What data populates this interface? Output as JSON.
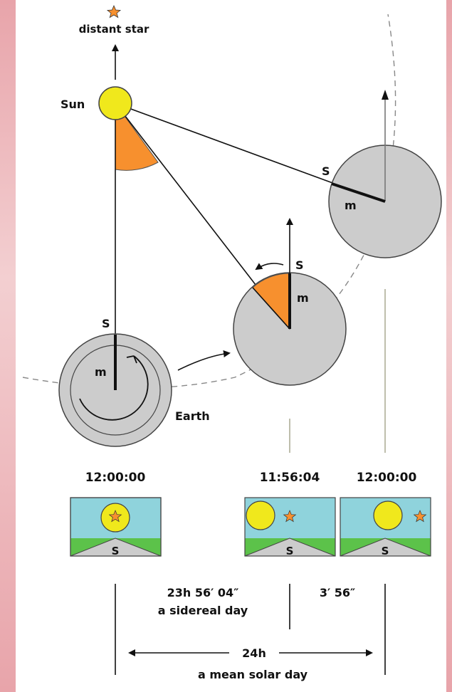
{
  "labels": {
    "star": "distant star",
    "sun": "Sun",
    "earth": "Earth",
    "s": "S",
    "m": "m"
  },
  "times": [
    "12:00:00",
    "11:56:04",
    "12:00:00"
  ],
  "durations": {
    "sidereal_value": "23h 56′ 04″",
    "sidereal_text": "a sidereal day",
    "difference": "3′ 56″",
    "solar_value": "24h",
    "solar_text": "a mean solar day"
  },
  "colors": {
    "sun": "#f0e81c",
    "earth": "#cccccc",
    "angle": "#f7902e",
    "sky": "#8fd3dc",
    "ground": "#5cc24a",
    "star": "#f7902e"
  }
}
